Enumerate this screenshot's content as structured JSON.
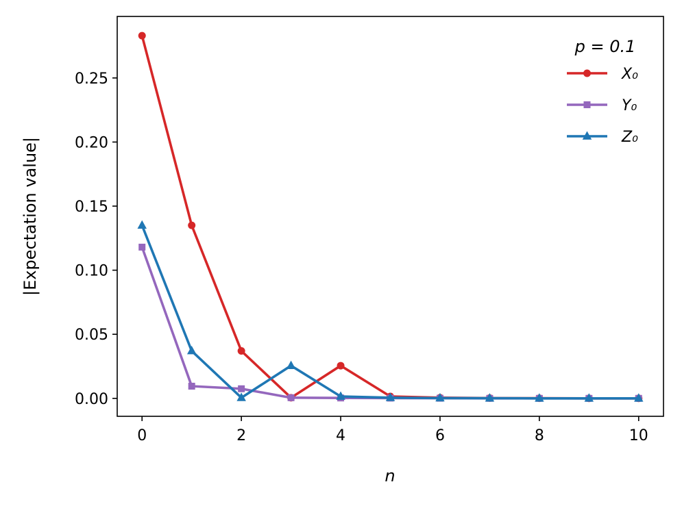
{
  "chart_data": {
    "type": "line",
    "xlabel": "n",
    "ylabel": "|Expectation value|",
    "xlim": [
      -0.5,
      10.5
    ],
    "ylim": [
      -0.014,
      0.298
    ],
    "xticks": [
      0,
      2,
      4,
      6,
      8,
      10
    ],
    "xtick_labels": [
      "0",
      "2",
      "4",
      "6",
      "8",
      "10"
    ],
    "yticks": [
      0.0,
      0.05,
      0.1,
      0.15,
      0.2,
      0.25
    ],
    "ytick_labels": [
      "0.00",
      "0.05",
      "0.10",
      "0.15",
      "0.20",
      "0.25"
    ],
    "grid": false,
    "legend": {
      "placement": "top-right",
      "title": "p = 0.1"
    },
    "x": [
      0,
      1,
      2,
      3,
      4,
      5,
      6,
      7,
      8,
      9,
      10
    ],
    "series": [
      {
        "name": "X₀",
        "color": "#d62728",
        "marker": "circle",
        "values": [
          0.283,
          0.135,
          0.037,
          0.0005,
          0.0255,
          0.0015,
          0.0005,
          0.0002,
          0.0001,
          0.0,
          0.0
        ]
      },
      {
        "name": "Y₀",
        "color": "#9467bd",
        "marker": "square",
        "values": [
          0.118,
          0.0095,
          0.0075,
          0.0005,
          0.0003,
          0.0002,
          0.0001,
          0.0,
          0.0,
          0.0,
          0.0
        ]
      },
      {
        "name": "Z₀",
        "color": "#1f77b4",
        "marker": "triangle",
        "values": [
          0.135,
          0.037,
          0.0005,
          0.0255,
          0.0015,
          0.0005,
          0.0002,
          0.0001,
          0.0,
          0.0,
          0.0
        ]
      }
    ]
  }
}
